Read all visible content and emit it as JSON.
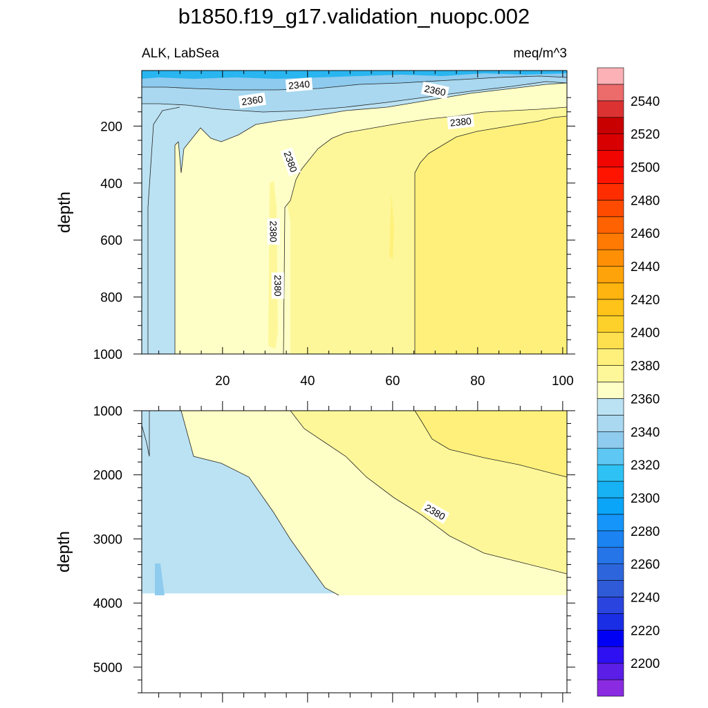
{
  "title": "b1850.f19_g17.validation_nuopc.002",
  "subtitle_left": "ALK, LabSea",
  "subtitle_right": "meq/m^3",
  "colors": {
    "blue_2340": "#8ecbee",
    "blue_2350": "#a9d8f0",
    "blue_2360": "#bbe2f3",
    "yellow_2370": "#feffc6",
    "yellow_2380": "#fef799",
    "yellow_2390": "#fef07a",
    "top_band": "#29b5f0"
  },
  "chart_data": [
    {
      "type": "heatmap",
      "panel": "upper",
      "variable": "ALK",
      "region": "LabSea",
      "units": "meq/m^3",
      "xlabel": "",
      "ylabel": "depth",
      "xlim": [
        1,
        101
      ],
      "ylim": [
        1000,
        5
      ],
      "y_inverted": true,
      "x_ticks": [
        20,
        40,
        60,
        80,
        100
      ],
      "y_ticks": [
        200,
        400,
        600,
        800,
        1000
      ],
      "contour_labels": [
        {
          "text": "2340",
          "x": 38,
          "y": 55
        },
        {
          "text": "2360",
          "x": 27,
          "y": 110
        },
        {
          "text": "2360",
          "x": 70,
          "y": 75
        },
        {
          "text": "2380",
          "x": 76,
          "y": 185
        },
        {
          "text": "2380",
          "x": 36,
          "y": 325
        },
        {
          "text": "2380",
          "x": 32,
          "y": 570
        },
        {
          "text": "2380",
          "x": 33,
          "y": 760
        }
      ],
      "regions": [
        {
          "label": "2340-2350 (surface)",
          "x_range": [
            1,
            101
          ],
          "y_range": [
            5,
            60
          ]
        },
        {
          "label": "2350-2360",
          "x_range": [
            1,
            101
          ],
          "y_range": [
            60,
            130
          ]
        },
        {
          "label": "2360-2370 (western column)",
          "x_range": [
            1,
            9
          ],
          "y_range": [
            130,
            1000
          ]
        },
        {
          "label": "2370-2380",
          "x_range": [
            9,
            36
          ],
          "y_range": [
            150,
            1000
          ]
        },
        {
          "label": "2380-2390",
          "x_range": [
            36,
            65
          ],
          "y_range": [
            200,
            1000
          ]
        },
        {
          "label": "2390-2400",
          "x_range": [
            65,
            101
          ],
          "y_range": [
            190,
            1000
          ]
        }
      ]
    },
    {
      "type": "heatmap",
      "panel": "lower",
      "variable": "ALK",
      "region": "LabSea",
      "units": "meq/m^3",
      "xlabel": "",
      "ylabel": "depth",
      "xlim": [
        1,
        101
      ],
      "ylim": [
        5400,
        1000
      ],
      "y_inverted": true,
      "y_ticks": [
        1000,
        2000,
        3000,
        4000,
        5000
      ],
      "data_max_depth": 3850,
      "contour_labels": [
        {
          "text": "2380",
          "x": 70,
          "y": 2580
        }
      ],
      "regions": [
        {
          "label": "2360-2370",
          "x_range": [
            1,
            45
          ],
          "y_range": [
            1000,
            3850
          ]
        },
        {
          "label": "2370-2380",
          "x_range": [
            10,
            101
          ],
          "y_range": [
            1000,
            3850
          ]
        },
        {
          "label": "2380-2390",
          "x_range": [
            35,
            101
          ],
          "y_range": [
            1000,
            3550
          ]
        },
        {
          "label": "2390-2400",
          "x_range": [
            66,
            101
          ],
          "y_range": [
            1000,
            2100
          ]
        }
      ]
    }
  ],
  "colorbar": {
    "levels": [
      2190,
      2200,
      2210,
      2220,
      2230,
      2240,
      2250,
      2260,
      2270,
      2280,
      2290,
      2300,
      2310,
      2320,
      2330,
      2340,
      2350,
      2360,
      2370,
      2380,
      2390,
      2400,
      2410,
      2420,
      2430,
      2440,
      2450,
      2460,
      2470,
      2480,
      2490,
      2500,
      2510,
      2520,
      2530,
      2540,
      2550
    ],
    "labels": [
      2200,
      2220,
      2240,
      2260,
      2280,
      2300,
      2320,
      2340,
      2360,
      2380,
      2400,
      2420,
      2440,
      2460,
      2480,
      2500,
      2520,
      2540
    ],
    "colors": [
      "#8a2be2",
      "#5a1ee6",
      "#2f10f2",
      "#0000f5",
      "#1a2ee6",
      "#2a45df",
      "#2f5ad8",
      "#2d66dc",
      "#2574e8",
      "#1b83f2",
      "#1595fa",
      "#0aa5f8",
      "#17b2f4",
      "#2dc2f3",
      "#5fc7f3",
      "#8ecbee",
      "#a9d8f0",
      "#bbe2f3",
      "#feffc6",
      "#fef799",
      "#fef07a",
      "#fee04f",
      "#fed12a",
      "#ffc31a",
      "#ffb40f",
      "#ffa30a",
      "#ff9006",
      "#ff7a02",
      "#ff6200",
      "#ff4b00",
      "#ff2d00",
      "#ff1400",
      "#f00500",
      "#d80000",
      "#c80000",
      "#dd3232",
      "#ec6b6b",
      "#fbb1b5"
    ]
  }
}
